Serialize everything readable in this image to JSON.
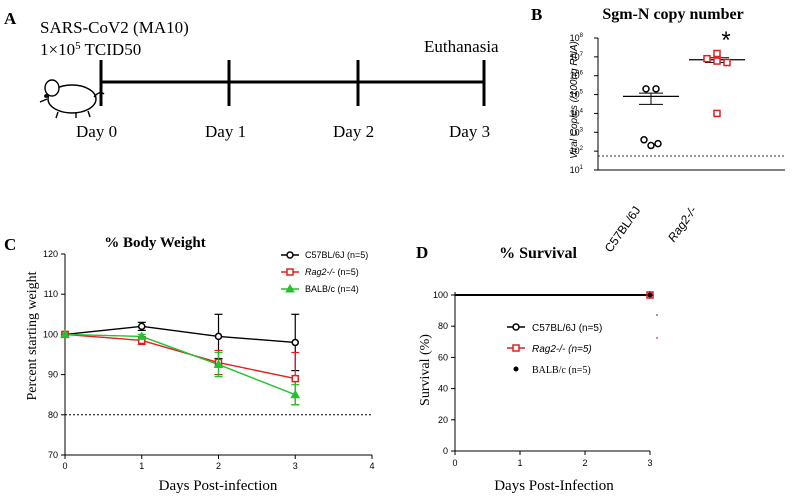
{
  "colors": {
    "black": "#000000",
    "red": "#e02020",
    "green": "#22c22e",
    "grey": "#555555"
  },
  "panel_a": {
    "label": "A",
    "virus": "SARS-CoV2 (MA10)",
    "dose_base": "1×10",
    "dose_exp": "5",
    "dose_unit": " TCID50",
    "endpoint": "Euthanasia",
    "days": [
      "Day 0",
      "Day 1",
      "Day 2",
      "Day 3"
    ],
    "icon": "mouse-icon"
  },
  "chart_data": [
    {
      "id": "B",
      "type": "scatter",
      "panel_label": "B",
      "title": "Sgm-N copy number",
      "ylabel": "Viral Copies (/100ng RNA)",
      "yscale": "log",
      "ylim": [
        10,
        100000000
      ],
      "yticks": [
        {
          "v": 1,
          "base": "10",
          "exp": "1"
        },
        {
          "v": 2,
          "base": "10",
          "exp": "2"
        },
        {
          "v": 3,
          "base": "10",
          "exp": "3"
        },
        {
          "v": 4,
          "base": "10",
          "exp": "4"
        },
        {
          "v": 5,
          "base": "10",
          "exp": "5"
        },
        {
          "v": 6,
          "base": "10",
          "exp": "6"
        },
        {
          "v": 7,
          "base": "10",
          "exp": "7"
        },
        {
          "v": 8,
          "base": "10",
          "exp": "8"
        }
      ],
      "categories": [
        "C57BL/6J",
        "Rag2-/-"
      ],
      "series": [
        {
          "name": "C57BL/6J",
          "color": "#000000",
          "marker": "circle",
          "points": [
            200000,
            200000,
            400,
            250,
            200
          ],
          "mean": 80000,
          "sem_low": 30000,
          "sem_high": 120000
        },
        {
          "name": "Rag2-/-",
          "color": "#e02020",
          "marker": "square",
          "points": [
            15000000,
            8000000,
            5000000,
            6000000,
            10000
          ],
          "mean": 7000000,
          "sem_low": 5000000,
          "sem_high": 9000000
        }
      ],
      "detection_limit": 50,
      "annotation": "*"
    },
    {
      "id": "C",
      "type": "line",
      "panel_label": "C",
      "title": "% Body Weight",
      "xlabel": "Days Post-infection",
      "ylabel": "Percent starting weight",
      "xlim": [
        0,
        4
      ],
      "ylim": [
        70,
        120
      ],
      "xticks": [
        "0",
        "1",
        "2",
        "3",
        "4"
      ],
      "yticks": [
        "70",
        "80",
        "90",
        "100",
        "110",
        "120"
      ],
      "x": [
        0,
        1,
        2,
        3
      ],
      "reference_line": 80,
      "series": [
        {
          "name": "C57BL/6J",
          "legend_suffix": " (n=5)",
          "color": "#000000",
          "marker": "circle",
          "values": [
            100,
            102,
            99.5,
            98
          ],
          "err": [
            0.5,
            1,
            5.5,
            7
          ]
        },
        {
          "name": "Rag2-/-",
          "legend_suffix": " (n=5)",
          "italic": true,
          "color": "#e02020",
          "marker": "square",
          "values": [
            100,
            98.5,
            93,
            89
          ],
          "err": [
            0.5,
            1,
            3,
            6.5
          ]
        },
        {
          "name": "BALB/c",
          "legend_suffix": " (n=4)",
          "color": "#22c22e",
          "marker": "triangle",
          "values": [
            100,
            99.5,
            92.5,
            85
          ],
          "err": [
            0.5,
            0.5,
            3,
            2.5
          ]
        }
      ]
    },
    {
      "id": "D",
      "type": "line",
      "panel_label": "D",
      "title": "% Survival",
      "xlabel": "Days Post-Infection",
      "ylabel": "Survival (%)",
      "xlim": [
        0,
        3
      ],
      "ylim": [
        0,
        100
      ],
      "xticks": [
        "0",
        "1",
        "2",
        "3"
      ],
      "yticks": [
        "0",
        "20",
        "40",
        "60",
        "80",
        "100"
      ],
      "x": [
        0,
        3
      ],
      "series": [
        {
          "name": "C57BL/6J",
          "legend_suffix": " (n=5)",
          "color": "#000000",
          "marker": "circle",
          "values": [
            100,
            100
          ]
        },
        {
          "name": "Rag2-/-",
          "legend_suffix": " (n=5)",
          "italic": true,
          "color": "#e02020",
          "marker": "square",
          "values": [
            100,
            100
          ]
        },
        {
          "name": "BALB/c",
          "legend_suffix": " (n=5)",
          "color": "#000000",
          "marker": "dot",
          "values": [
            100,
            100
          ]
        }
      ]
    }
  ]
}
